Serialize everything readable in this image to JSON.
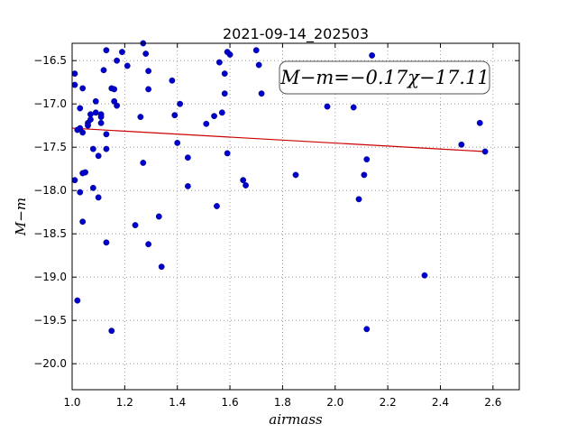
{
  "chart_data": {
    "type": "scatter",
    "title": "2021-09-14_202503",
    "xlabel": "airmass",
    "ylabel": "M−m",
    "xlim": [
      1.0,
      2.7
    ],
    "ylim": [
      -16.3,
      -20.3
    ],
    "y_inverted": true,
    "grid": true,
    "grid_style": "dotted",
    "xticks": [
      "1.0",
      "1.2",
      "1.4",
      "1.6",
      "1.8",
      "2.0",
      "2.2",
      "2.4",
      "2.6"
    ],
    "yticks": [
      "−16.5",
      "−17.0",
      "−17.5",
      "−18.0",
      "−18.5",
      "−19.0",
      "−19.5",
      "−20.0"
    ],
    "annotation": "M−m=−0.17χ−17.11",
    "colors": {
      "points": "#0000cc",
      "fit_line": "#cc0000",
      "grid": "#888888"
    },
    "series": [
      {
        "type": "scatter",
        "points": [
          [
            1.01,
            -16.65
          ],
          [
            1.01,
            -16.78
          ],
          [
            1.02,
            -17.3
          ],
          [
            1.01,
            -17.88
          ],
          [
            1.03,
            -17.28
          ],
          [
            1.03,
            -17.05
          ],
          [
            1.03,
            -18.02
          ],
          [
            1.04,
            -16.82
          ],
          [
            1.04,
            -17.33
          ],
          [
            1.04,
            -17.8
          ],
          [
            1.05,
            -17.79
          ],
          [
            1.04,
            -18.36
          ],
          [
            1.02,
            -19.27
          ],
          [
            1.06,
            -17.22
          ],
          [
            1.06,
            -17.25
          ],
          [
            1.07,
            -17.18
          ],
          [
            1.07,
            -17.12
          ],
          [
            1.08,
            -17.97
          ],
          [
            1.08,
            -17.52
          ],
          [
            1.09,
            -16.97
          ],
          [
            1.09,
            -17.1
          ],
          [
            1.1,
            -17.6
          ],
          [
            1.1,
            -18.08
          ],
          [
            1.11,
            -17.12
          ],
          [
            1.11,
            -17.22
          ],
          [
            1.11,
            -17.15
          ],
          [
            1.12,
            -16.61
          ],
          [
            1.13,
            -16.38
          ],
          [
            1.13,
            -17.35
          ],
          [
            1.13,
            -17.52
          ],
          [
            1.13,
            -18.6
          ],
          [
            1.15,
            -16.82
          ],
          [
            1.16,
            -16.83
          ],
          [
            1.16,
            -16.97
          ],
          [
            1.17,
            -16.5
          ],
          [
            1.17,
            -17.02
          ],
          [
            1.15,
            -19.62
          ],
          [
            1.19,
            -16.4
          ],
          [
            1.21,
            -16.56
          ],
          [
            1.24,
            -18.4
          ],
          [
            1.26,
            -17.15
          ],
          [
            1.27,
            -16.3
          ],
          [
            1.28,
            -16.42
          ],
          [
            1.27,
            -17.68
          ],
          [
            1.29,
            -16.62
          ],
          [
            1.29,
            -16.83
          ],
          [
            1.29,
            -18.62
          ],
          [
            1.33,
            -18.3
          ],
          [
            1.34,
            -18.88
          ],
          [
            1.38,
            -16.73
          ],
          [
            1.39,
            -17.13
          ],
          [
            1.4,
            -17.45
          ],
          [
            1.41,
            -17.0
          ],
          [
            1.44,
            -17.62
          ],
          [
            1.44,
            -17.95
          ],
          [
            1.51,
            -17.23
          ],
          [
            1.54,
            -17.14
          ],
          [
            1.55,
            -18.18
          ],
          [
            1.56,
            -16.52
          ],
          [
            1.57,
            -17.1
          ],
          [
            1.58,
            -16.88
          ],
          [
            1.58,
            -16.65
          ],
          [
            1.59,
            -16.4
          ],
          [
            1.59,
            -17.57
          ],
          [
            1.6,
            -16.43
          ],
          [
            1.65,
            -17.88
          ],
          [
            1.66,
            -17.94
          ],
          [
            1.7,
            -16.38
          ],
          [
            1.71,
            -16.55
          ],
          [
            1.72,
            -16.88
          ],
          [
            1.85,
            -17.82
          ],
          [
            1.97,
            -17.03
          ],
          [
            2.07,
            -17.04
          ],
          [
            2.09,
            -18.1
          ],
          [
            2.11,
            -17.82
          ],
          [
            2.12,
            -17.64
          ],
          [
            2.14,
            -16.44
          ],
          [
            2.12,
            -19.6
          ],
          [
            2.34,
            -18.98
          ],
          [
            2.48,
            -17.47
          ],
          [
            2.55,
            -17.22
          ],
          [
            2.57,
            -17.55
          ]
        ]
      },
      {
        "type": "line",
        "x": [
          1.0,
          2.57
        ],
        "y": [
          -17.28,
          -17.55
        ]
      }
    ]
  }
}
